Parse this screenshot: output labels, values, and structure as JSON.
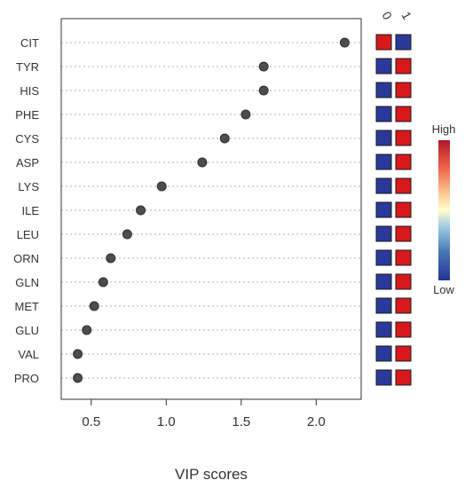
{
  "chart_data": {
    "type": "scatter",
    "xlabel": "VIP scores",
    "ylabel": "",
    "xlim": [
      0.3,
      2.3
    ],
    "x_ticks": [
      0.5,
      1.0,
      1.5,
      2.0
    ],
    "x_tick_labels": [
      "0.5",
      "1.0",
      "1.5",
      "2.0"
    ],
    "grid": "horizontal dotted lines per variable",
    "variables": [
      "CIT",
      "TYR",
      "HIS",
      "PHE",
      "CYS",
      "ASP",
      "LYS",
      "ILE",
      "LEU",
      "ORN",
      "GLN",
      "MET",
      "GLU",
      "VAL",
      "PRO"
    ],
    "vip_scores": [
      2.19,
      1.65,
      1.65,
      1.53,
      1.39,
      1.24,
      0.97,
      0.83,
      0.74,
      0.63,
      0.58,
      0.52,
      0.47,
      0.41,
      0.41
    ],
    "groups": [
      "0",
      "1"
    ],
    "heatmap": [
      [
        "high",
        "low"
      ],
      [
        "low",
        "high"
      ],
      [
        "low",
        "high"
      ],
      [
        "low",
        "high"
      ],
      [
        "low",
        "high"
      ],
      [
        "low",
        "high"
      ],
      [
        "low",
        "high"
      ],
      [
        "low",
        "high"
      ],
      [
        "low",
        "high"
      ],
      [
        "low",
        "high"
      ],
      [
        "low",
        "high"
      ],
      [
        "low",
        "high"
      ],
      [
        "low",
        "high"
      ],
      [
        "low",
        "high"
      ],
      [
        "low",
        "high"
      ]
    ],
    "legend": {
      "high_label": "High",
      "low_label": "Low",
      "position": "right"
    },
    "colors": {
      "high": "#d7191c",
      "low": "#2b3a9a",
      "point": "#4d4d4d",
      "mid": "#fffbd0"
    }
  }
}
